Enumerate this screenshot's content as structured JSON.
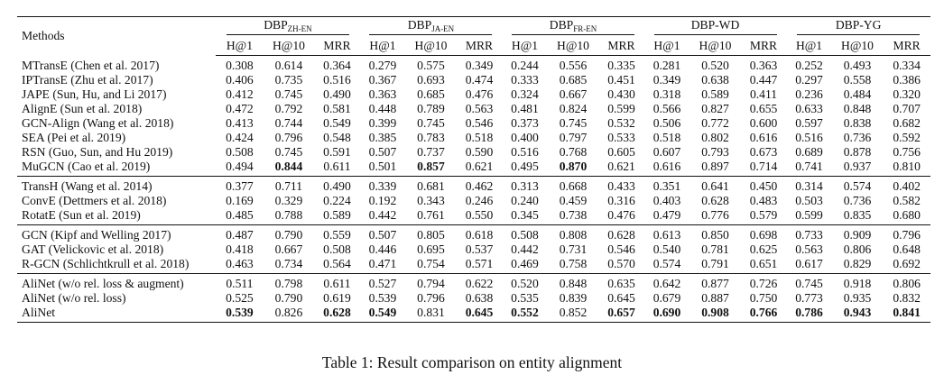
{
  "table": {
    "methods_header": "Methods",
    "datasets": [
      {
        "name": "DBP",
        "sub": "ZH-EN"
      },
      {
        "name": "DBP",
        "sub": "JA-EN"
      },
      {
        "name": "DBP",
        "sub": "FR-EN"
      },
      {
        "name": "DBP-WD",
        "sub": ""
      },
      {
        "name": "DBP-YG",
        "sub": ""
      }
    ],
    "metrics": [
      "H@1",
      "H@10",
      "MRR"
    ],
    "groups": [
      [
        {
          "method": "MTransE (Chen et al. 2017)",
          "values": [
            "0.308",
            "0.614",
            "0.364",
            "0.279",
            "0.575",
            "0.349",
            "0.244",
            "0.556",
            "0.335",
            "0.281",
            "0.520",
            "0.363",
            "0.252",
            "0.493",
            "0.334"
          ],
          "bold": []
        },
        {
          "method": "IPTransE (Zhu et al. 2017)",
          "values": [
            "0.406",
            "0.735",
            "0.516",
            "0.367",
            "0.693",
            "0.474",
            "0.333",
            "0.685",
            "0.451",
            "0.349",
            "0.638",
            "0.447",
            "0.297",
            "0.558",
            "0.386"
          ],
          "bold": []
        },
        {
          "method": "JAPE (Sun, Hu, and Li 2017)",
          "values": [
            "0.412",
            "0.745",
            "0.490",
            "0.363",
            "0.685",
            "0.476",
            "0.324",
            "0.667",
            "0.430",
            "0.318",
            "0.589",
            "0.411",
            "0.236",
            "0.484",
            "0.320"
          ],
          "bold": []
        },
        {
          "method": "AlignE (Sun et al. 2018)",
          "values": [
            "0.472",
            "0.792",
            "0.581",
            "0.448",
            "0.789",
            "0.563",
            "0.481",
            "0.824",
            "0.599",
            "0.566",
            "0.827",
            "0.655",
            "0.633",
            "0.848",
            "0.707"
          ],
          "bold": []
        },
        {
          "method": "GCN-Align (Wang et al. 2018)",
          "values": [
            "0.413",
            "0.744",
            "0.549",
            "0.399",
            "0.745",
            "0.546",
            "0.373",
            "0.745",
            "0.532",
            "0.506",
            "0.772",
            "0.600",
            "0.597",
            "0.838",
            "0.682"
          ],
          "bold": []
        },
        {
          "method": "SEA (Pei et al. 2019)",
          "values": [
            "0.424",
            "0.796",
            "0.548",
            "0.385",
            "0.783",
            "0.518",
            "0.400",
            "0.797",
            "0.533",
            "0.518",
            "0.802",
            "0.616",
            "0.516",
            "0.736",
            "0.592"
          ],
          "bold": []
        },
        {
          "method": "RSN (Guo, Sun, and Hu 2019)",
          "values": [
            "0.508",
            "0.745",
            "0.591",
            "0.507",
            "0.737",
            "0.590",
            "0.516",
            "0.768",
            "0.605",
            "0.607",
            "0.793",
            "0.673",
            "0.689",
            "0.878",
            "0.756"
          ],
          "bold": []
        },
        {
          "method": "MuGCN (Cao et al. 2019)",
          "values": [
            "0.494",
            "0.844",
            "0.611",
            "0.501",
            "0.857",
            "0.621",
            "0.495",
            "0.870",
            "0.621",
            "0.616",
            "0.897",
            "0.714",
            "0.741",
            "0.937",
            "0.810"
          ],
          "bold": [
            1,
            4,
            7
          ]
        }
      ],
      [
        {
          "method": "TransH (Wang et al. 2014)",
          "values": [
            "0.377",
            "0.711",
            "0.490",
            "0.339",
            "0.681",
            "0.462",
            "0.313",
            "0.668",
            "0.433",
            "0.351",
            "0.641",
            "0.450",
            "0.314",
            "0.574",
            "0.402"
          ],
          "bold": []
        },
        {
          "method": "ConvE (Dettmers et al. 2018)",
          "values": [
            "0.169",
            "0.329",
            "0.224",
            "0.192",
            "0.343",
            "0.246",
            "0.240",
            "0.459",
            "0.316",
            "0.403",
            "0.628",
            "0.483",
            "0.503",
            "0.736",
            "0.582"
          ],
          "bold": []
        },
        {
          "method": "RotatE (Sun et al. 2019)",
          "values": [
            "0.485",
            "0.788",
            "0.589",
            "0.442",
            "0.761",
            "0.550",
            "0.345",
            "0.738",
            "0.476",
            "0.479",
            "0.776",
            "0.579",
            "0.599",
            "0.835",
            "0.680"
          ],
          "bold": []
        }
      ],
      [
        {
          "method": "GCN (Kipf and Welling 2017)",
          "values": [
            "0.487",
            "0.790",
            "0.559",
            "0.507",
            "0.805",
            "0.618",
            "0.508",
            "0.808",
            "0.628",
            "0.613",
            "0.850",
            "0.698",
            "0.733",
            "0.909",
            "0.796"
          ],
          "bold": []
        },
        {
          "method": "GAT (Velickovic et al. 2018)",
          "values": [
            "0.418",
            "0.667",
            "0.508",
            "0.446",
            "0.695",
            "0.537",
            "0.442",
            "0.731",
            "0.546",
            "0.540",
            "0.781",
            "0.625",
            "0.563",
            "0.806",
            "0.648"
          ],
          "bold": []
        },
        {
          "method": "R-GCN (Schlichtkrull et al. 2018)",
          "values": [
            "0.463",
            "0.734",
            "0.564",
            "0.471",
            "0.754",
            "0.571",
            "0.469",
            "0.758",
            "0.570",
            "0.574",
            "0.791",
            "0.651",
            "0.617",
            "0.829",
            "0.692"
          ],
          "bold": []
        }
      ],
      [
        {
          "method": "AliNet (w/o rel. loss & augment)",
          "values": [
            "0.511",
            "0.798",
            "0.611",
            "0.527",
            "0.794",
            "0.622",
            "0.520",
            "0.848",
            "0.635",
            "0.642",
            "0.877",
            "0.726",
            "0.745",
            "0.918",
            "0.806"
          ],
          "bold": []
        },
        {
          "method": "AliNet (w/o rel. loss)",
          "values": [
            "0.525",
            "0.790",
            "0.619",
            "0.539",
            "0.796",
            "0.638",
            "0.535",
            "0.839",
            "0.645",
            "0.679",
            "0.887",
            "0.750",
            "0.773",
            "0.935",
            "0.832"
          ],
          "bold": []
        },
        {
          "method": "AliNet",
          "values": [
            "0.539",
            "0.826",
            "0.628",
            "0.549",
            "0.831",
            "0.645",
            "0.552",
            "0.852",
            "0.657",
            "0.690",
            "0.908",
            "0.766",
            "0.786",
            "0.943",
            "0.841"
          ],
          "bold": [
            0,
            2,
            3,
            5,
            6,
            8,
            9,
            10,
            11,
            12,
            13,
            14
          ]
        }
      ]
    ]
  },
  "caption": "Table 1: Result comparison on entity alignment"
}
